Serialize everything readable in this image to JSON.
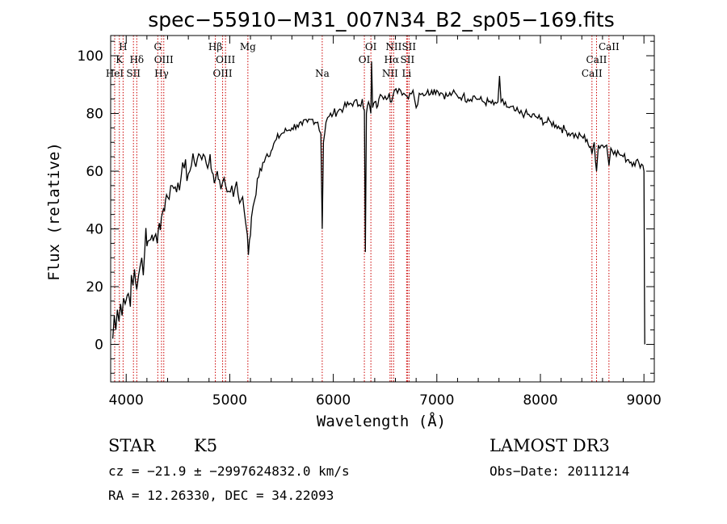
{
  "figure": {
    "title": "spec−55910−M31_007N34_B2_sp05−169.fits",
    "object_class": "STAR",
    "subclass": "K5",
    "survey": "LAMOST DR3",
    "redshift_line": "cz = −21.9 ± −2997624832.0 km/s",
    "obs_date_line": "Obs−Date: 20111214",
    "coords_line": "RA =  12.26330, DEC =  34.22093"
  },
  "chart_data": {
    "type": "line",
    "title": "spec−55910−M31_007N34_B2_sp05−169.fits",
    "xlabel": "Wavelength (Å)",
    "ylabel": "Flux (relative)",
    "xlim": [
      3850,
      9100
    ],
    "ylim": [
      -13,
      107
    ],
    "xticks": [
      4000,
      5000,
      6000,
      7000,
      8000,
      9000
    ],
    "yticks": [
      0,
      20,
      40,
      60,
      80,
      100
    ],
    "grid": false,
    "series": [
      {
        "points": [
          [
            3870,
            2
          ],
          [
            3885,
            10
          ],
          [
            3900,
            5
          ],
          [
            3915,
            12
          ],
          [
            3930,
            8
          ],
          [
            3945,
            14
          ],
          [
            3960,
            10
          ],
          [
            3975,
            16
          ],
          [
            3990,
            14
          ],
          [
            4010,
            17
          ],
          [
            4030,
            16
          ],
          [
            4050,
            24
          ],
          [
            4080,
            26
          ],
          [
            4102,
            19
          ],
          [
            4120,
            24
          ],
          [
            4150,
            30
          ],
          [
            4180,
            33
          ],
          [
            4200,
            34
          ],
          [
            4220,
            36
          ],
          [
            4250,
            38
          ],
          [
            4270,
            37
          ],
          [
            4300,
            35
          ],
          [
            4320,
            42
          ],
          [
            4340,
            44
          ],
          [
            4360,
            47
          ],
          [
            4380,
            50
          ],
          [
            4400,
            51
          ],
          [
            4430,
            55
          ],
          [
            4460,
            54
          ],
          [
            4500,
            56
          ],
          [
            4530,
            58
          ],
          [
            4560,
            61
          ],
          [
            4600,
            59
          ],
          [
            4630,
            62
          ],
          [
            4660,
            63
          ],
          [
            4700,
            66
          ],
          [
            4730,
            64
          ],
          [
            4760,
            65
          ],
          [
            4800,
            63
          ],
          [
            4820,
            61
          ],
          [
            4840,
            59
          ],
          [
            4861,
            57
          ],
          [
            4880,
            60
          ],
          [
            4900,
            57
          ],
          [
            4930,
            56
          ],
          [
            4960,
            55
          ],
          [
            4990,
            53
          ],
          [
            5020,
            55
          ],
          [
            5050,
            54
          ],
          [
            5080,
            52
          ],
          [
            5110,
            50
          ],
          [
            5140,
            46
          ],
          [
            5170,
            38
          ],
          [
            5180,
            31
          ],
          [
            5190,
            36
          ],
          [
            5210,
            44
          ],
          [
            5240,
            50
          ],
          [
            5280,
            58
          ],
          [
            5320,
            63
          ],
          [
            5360,
            66
          ],
          [
            5400,
            67
          ],
          [
            5450,
            71
          ],
          [
            5500,
            73
          ],
          [
            5550,
            74
          ],
          [
            5600,
            75
          ],
          [
            5650,
            76
          ],
          [
            5700,
            76
          ],
          [
            5750,
            77
          ],
          [
            5800,
            78
          ],
          [
            5850,
            77
          ],
          [
            5880,
            73
          ],
          [
            5893,
            40
          ],
          [
            5905,
            70
          ],
          [
            5930,
            77
          ],
          [
            5960,
            79
          ],
          [
            6000,
            80
          ],
          [
            6050,
            81
          ],
          [
            6100,
            82
          ],
          [
            6150,
            83
          ],
          [
            6200,
            84
          ],
          [
            6250,
            83
          ],
          [
            6280,
            85
          ],
          [
            6300,
            81
          ],
          [
            6310,
            32
          ],
          [
            6320,
            80
          ],
          [
            6340,
            84
          ],
          [
            6363,
            80
          ],
          [
            6370,
            98
          ],
          [
            6380,
            82
          ],
          [
            6400,
            84
          ],
          [
            6420,
            82
          ],
          [
            6440,
            85
          ],
          [
            6470,
            86
          ],
          [
            6500,
            86
          ],
          [
            6540,
            87
          ],
          [
            6563,
            84
          ],
          [
            6590,
            88
          ],
          [
            6620,
            87
          ],
          [
            6650,
            88
          ],
          [
            6680,
            87
          ],
          [
            6710,
            86
          ],
          [
            6740,
            87
          ],
          [
            6770,
            88
          ],
          [
            6800,
            82
          ],
          [
            6830,
            87
          ],
          [
            6860,
            87
          ],
          [
            6900,
            87
          ],
          [
            6950,
            88
          ],
          [
            7000,
            88
          ],
          [
            7050,
            87
          ],
          [
            7100,
            86
          ],
          [
            7150,
            87
          ],
          [
            7200,
            86
          ],
          [
            7250,
            86
          ],
          [
            7300,
            85
          ],
          [
            7350,
            86
          ],
          [
            7400,
            85
          ],
          [
            7450,
            84
          ],
          [
            7500,
            84
          ],
          [
            7550,
            83
          ],
          [
            7590,
            84
          ],
          [
            7605,
            93
          ],
          [
            7620,
            84
          ],
          [
            7650,
            83
          ],
          [
            7700,
            82
          ],
          [
            7750,
            81
          ],
          [
            7800,
            80
          ],
          [
            7850,
            80
          ],
          [
            7900,
            79
          ],
          [
            7950,
            79
          ],
          [
            8000,
            78
          ],
          [
            8050,
            77
          ],
          [
            8100,
            77
          ],
          [
            8150,
            76
          ],
          [
            8200,
            75
          ],
          [
            8250,
            74
          ],
          [
            8300,
            73
          ],
          [
            8350,
            72
          ],
          [
            8400,
            72
          ],
          [
            8450,
            71
          ],
          [
            8498,
            66
          ],
          [
            8520,
            70
          ],
          [
            8542,
            60
          ],
          [
            8560,
            69
          ],
          [
            8600,
            69
          ],
          [
            8640,
            69
          ],
          [
            8662,
            62
          ],
          [
            8680,
            68
          ],
          [
            8720,
            67
          ],
          [
            8760,
            66
          ],
          [
            8800,
            65
          ],
          [
            8850,
            64
          ],
          [
            8900,
            63
          ],
          [
            8950,
            63
          ],
          [
            8990,
            62
          ],
          [
            9000,
            60
          ],
          [
            9005,
            20
          ],
          [
            9008,
            0
          ]
        ]
      }
    ],
    "line_markers": [
      {
        "label": "H",
        "wavelength": 3970,
        "row": 1
      },
      {
        "label": "K",
        "wavelength": 3934,
        "row": 2
      },
      {
        "label": "HeI",
        "wavelength": 3889,
        "row": 3
      },
      {
        "label": "Hδ",
        "wavelength": 4102,
        "row": 2
      },
      {
        "label": "SII",
        "wavelength": 4070,
        "row": 3
      },
      {
        "label": "G",
        "wavelength": 4305,
        "row": 1
      },
      {
        "label": "OIII",
        "wavelength": 4363,
        "row": 2
      },
      {
        "label": "Hγ",
        "wavelength": 4341,
        "row": 3
      },
      {
        "label": "Hβ",
        "wavelength": 4861,
        "row": 1
      },
      {
        "label": "OIII",
        "wavelength": 4959,
        "row": 2
      },
      {
        "label": "OIII",
        "wavelength": 4931,
        "row": 3
      },
      {
        "label": "Mg",
        "wavelength": 5175,
        "row": 1
      },
      {
        "label": "Na",
        "wavelength": 5893,
        "row": 3
      },
      {
        "label": "OI",
        "wavelength": 6363,
        "row": 1
      },
      {
        "label": "OI",
        "wavelength": 6300,
        "row": 2
      },
      {
        "label": "NII",
        "wavelength": 6583,
        "row": 1
      },
      {
        "label": "Hα",
        "wavelength": 6563,
        "row": 2
      },
      {
        "label": "NII",
        "wavelength": 6548,
        "row": 3
      },
      {
        "label": "SII",
        "wavelength": 6731,
        "row": 1
      },
      {
        "label": "SII",
        "wavelength": 6716,
        "row": 2
      },
      {
        "label": "Li",
        "wavelength": 6708,
        "row": 3
      },
      {
        "label": "CaII",
        "wavelength": 8662,
        "row": 1
      },
      {
        "label": "CaII",
        "wavelength": 8542,
        "row": 2
      },
      {
        "label": "CaII",
        "wavelength": 8498,
        "row": 3
      }
    ],
    "colors": {
      "spectrum": "#000000",
      "line_markers": "#cc0000",
      "axes": "#000000"
    }
  }
}
